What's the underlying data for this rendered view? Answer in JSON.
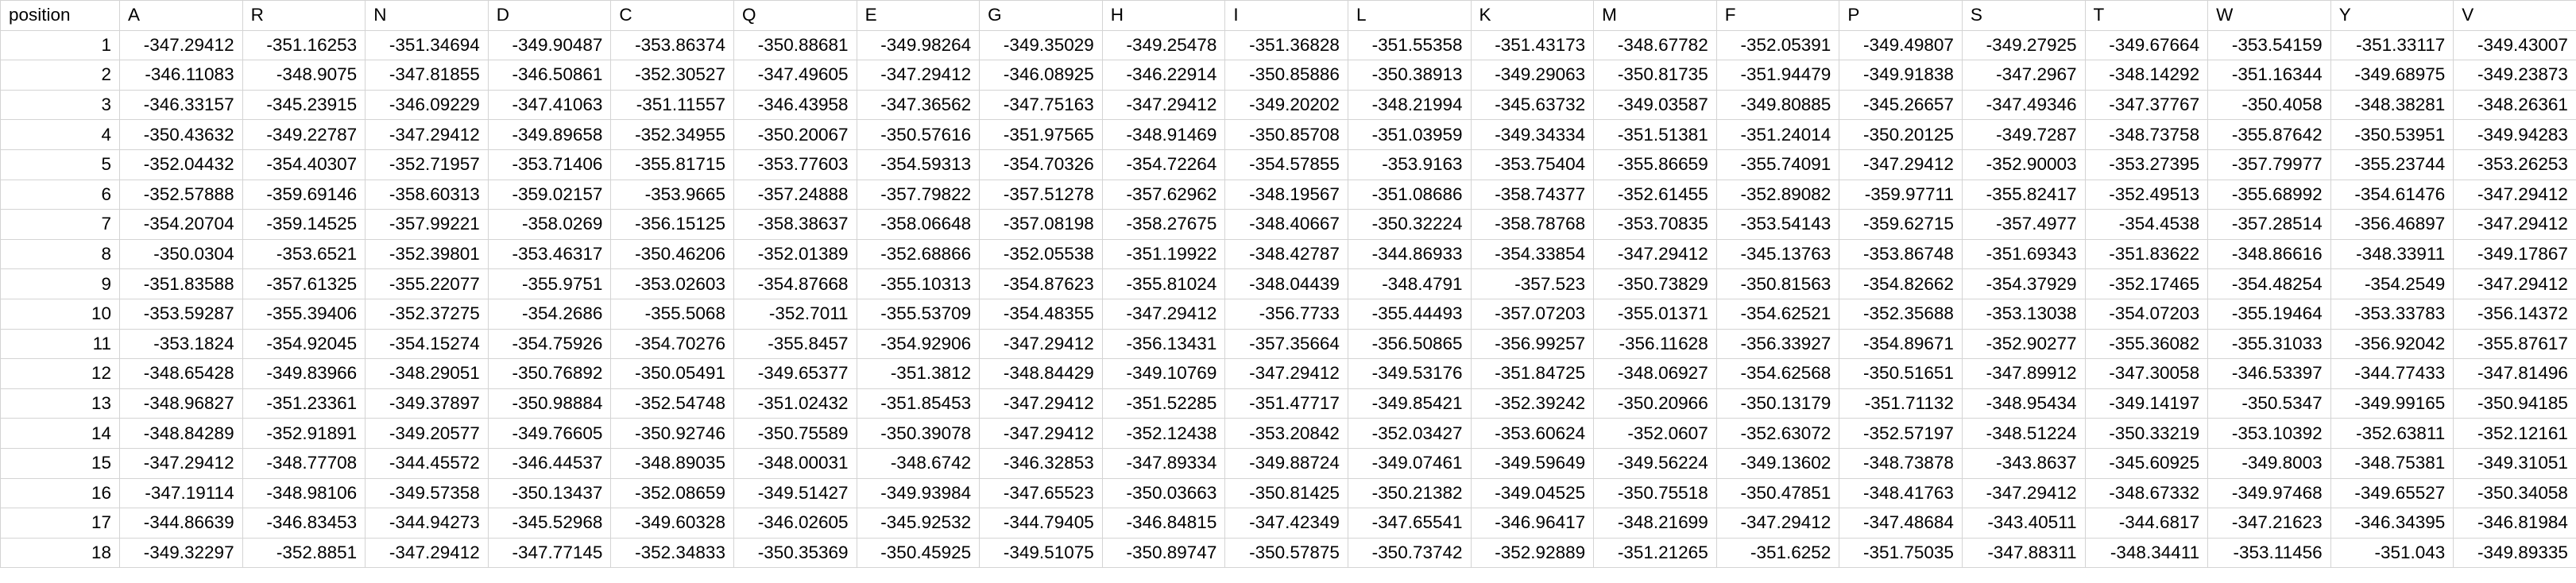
{
  "sheet": {
    "headers": [
      "position",
      "A",
      "R",
      "N",
      "D",
      "C",
      "Q",
      "E",
      "G",
      "H",
      "I",
      "L",
      "K",
      "M",
      "F",
      "P",
      "S",
      "T",
      "W",
      "Y",
      "V"
    ],
    "rows": [
      [
        "1",
        "-347.29412",
        "-351.16253",
        "-351.34694",
        "-349.90487",
        "-353.86374",
        "-350.88681",
        "-349.98264",
        "-349.35029",
        "-349.25478",
        "-351.36828",
        "-351.55358",
        "-351.43173",
        "-348.67782",
        "-352.05391",
        "-349.49807",
        "-349.27925",
        "-349.67664",
        "-353.54159",
        "-351.33117",
        "-349.43007"
      ],
      [
        "2",
        "-346.11083",
        "-348.9075",
        "-347.81855",
        "-346.50861",
        "-352.30527",
        "-347.49605",
        "-347.29412",
        "-346.08925",
        "-346.22914",
        "-350.85886",
        "-350.38913",
        "-349.29063",
        "-350.81735",
        "-351.94479",
        "-349.91838",
        "-347.2967",
        "-348.14292",
        "-351.16344",
        "-349.68975",
        "-349.23873"
      ],
      [
        "3",
        "-346.33157",
        "-345.23915",
        "-346.09229",
        "-347.41063",
        "-351.11557",
        "-346.43958",
        "-347.36562",
        "-347.75163",
        "-347.29412",
        "-349.20202",
        "-348.21994",
        "-345.63732",
        "-349.03587",
        "-349.80885",
        "-345.26657",
        "-347.49346",
        "-347.37767",
        "-350.4058",
        "-348.38281",
        "-348.26361"
      ],
      [
        "4",
        "-350.43632",
        "-349.22787",
        "-347.29412",
        "-349.89658",
        "-352.34955",
        "-350.20067",
        "-350.57616",
        "-351.97565",
        "-348.91469",
        "-350.85708",
        "-351.03959",
        "-349.34334",
        "-351.51381",
        "-351.24014",
        "-350.20125",
        "-349.7287",
        "-348.73758",
        "-355.87642",
        "-350.53951",
        "-349.94283"
      ],
      [
        "5",
        "-352.04432",
        "-354.40307",
        "-352.71957",
        "-353.71406",
        "-355.81715",
        "-353.77603",
        "-354.59313",
        "-354.70326",
        "-354.72264",
        "-354.57855",
        "-353.9163",
        "-353.75404",
        "-355.86659",
        "-355.74091",
        "-347.29412",
        "-352.90003",
        "-353.27395",
        "-357.79977",
        "-355.23744",
        "-353.26253"
      ],
      [
        "6",
        "-352.57888",
        "-359.69146",
        "-358.60313",
        "-359.02157",
        "-353.9665",
        "-357.24888",
        "-357.79822",
        "-357.51278",
        "-357.62962",
        "-348.19567",
        "-351.08686",
        "-358.74377",
        "-352.61455",
        "-352.89082",
        "-359.97711",
        "-355.82417",
        "-352.49513",
        "-355.68992",
        "-354.61476",
        "-347.29412"
      ],
      [
        "7",
        "-354.20704",
        "-359.14525",
        "-357.99221",
        "-358.0269",
        "-356.15125",
        "-358.38637",
        "-358.06648",
        "-357.08198",
        "-358.27675",
        "-348.40667",
        "-350.32224",
        "-358.78768",
        "-353.70835",
        "-353.54143",
        "-359.62715",
        "-357.4977",
        "-354.4538",
        "-357.28514",
        "-356.46897",
        "-347.29412"
      ],
      [
        "8",
        "-350.0304",
        "-353.6521",
        "-352.39801",
        "-353.46317",
        "-350.46206",
        "-352.01389",
        "-352.68866",
        "-352.05538",
        "-351.19922",
        "-348.42787",
        "-344.86933",
        "-354.33854",
        "-347.29412",
        "-345.13763",
        "-353.86748",
        "-351.69343",
        "-351.83622",
        "-348.86616",
        "-348.33911",
        "-349.17867"
      ],
      [
        "9",
        "-351.83588",
        "-357.61325",
        "-355.22077",
        "-355.9751",
        "-353.02603",
        "-354.87668",
        "-355.10313",
        "-354.87623",
        "-355.81024",
        "-348.04439",
        "-348.4791",
        "-357.523",
        "-350.73829",
        "-350.81563",
        "-354.82662",
        "-354.37929",
        "-352.17465",
        "-354.48254",
        "-354.2549",
        "-347.29412"
      ],
      [
        "10",
        "-353.59287",
        "-355.39406",
        "-352.37275",
        "-354.2686",
        "-355.5068",
        "-352.7011",
        "-355.53709",
        "-354.48355",
        "-347.29412",
        "-356.7733",
        "-355.44493",
        "-357.07203",
        "-355.01371",
        "-354.62521",
        "-352.35688",
        "-353.13038",
        "-354.07203",
        "-355.19464",
        "-353.33783",
        "-356.14372"
      ],
      [
        "11",
        "-353.1824",
        "-354.92045",
        "-354.15274",
        "-354.75926",
        "-354.70276",
        "-355.8457",
        "-354.92906",
        "-347.29412",
        "-356.13431",
        "-357.35664",
        "-356.50865",
        "-356.99257",
        "-356.11628",
        "-356.33927",
        "-354.89671",
        "-352.90277",
        "-355.36082",
        "-355.31033",
        "-356.92042",
        "-355.87617"
      ],
      [
        "12",
        "-348.65428",
        "-349.83966",
        "-348.29051",
        "-350.76892",
        "-350.05491",
        "-349.65377",
        "-351.3812",
        "-348.84429",
        "-349.10769",
        "-347.29412",
        "-349.53176",
        "-351.84725",
        "-348.06927",
        "-354.62568",
        "-350.51651",
        "-347.89912",
        "-347.30058",
        "-346.53397",
        "-344.77433",
        "-347.81496"
      ],
      [
        "13",
        "-348.96827",
        "-351.23361",
        "-349.37897",
        "-350.98884",
        "-352.54748",
        "-351.02432",
        "-351.85453",
        "-347.29412",
        "-351.52285",
        "-351.47717",
        "-349.85421",
        "-352.39242",
        "-350.20966",
        "-350.13179",
        "-351.71132",
        "-348.95434",
        "-349.14197",
        "-350.5347",
        "-349.99165",
        "-350.94185"
      ],
      [
        "14",
        "-348.84289",
        "-352.91891",
        "-349.20577",
        "-349.76605",
        "-350.92746",
        "-350.75589",
        "-350.39078",
        "-347.29412",
        "-352.12438",
        "-353.20842",
        "-352.03427",
        "-353.60624",
        "-352.0607",
        "-352.63072",
        "-352.57197",
        "-348.51224",
        "-350.33219",
        "-353.10392",
        "-352.63811",
        "-352.12161"
      ],
      [
        "15",
        "-347.29412",
        "-348.77708",
        "-344.45572",
        "-346.44537",
        "-348.89035",
        "-348.00031",
        "-348.6742",
        "-346.32853",
        "-347.89334",
        "-349.88724",
        "-349.07461",
        "-349.59649",
        "-349.56224",
        "-349.13602",
        "-348.73878",
        "-343.8637",
        "-345.60925",
        "-349.8003",
        "-348.75381",
        "-349.31051"
      ],
      [
        "16",
        "-347.19114",
        "-348.98106",
        "-349.57358",
        "-350.13437",
        "-352.08659",
        "-349.51427",
        "-349.93984",
        "-347.65523",
        "-350.03663",
        "-350.81425",
        "-350.21382",
        "-349.04525",
        "-350.75518",
        "-350.47851",
        "-348.41763",
        "-347.29412",
        "-348.67332",
        "-349.97468",
        "-349.65527",
        "-350.34058"
      ],
      [
        "17",
        "-344.86639",
        "-346.83453",
        "-344.94273",
        "-345.52968",
        "-349.60328",
        "-346.02605",
        "-345.92532",
        "-344.79405",
        "-346.84815",
        "-347.42349",
        "-347.65541",
        "-346.96417",
        "-348.21699",
        "-347.29412",
        "-347.48684",
        "-343.40511",
        "-344.6817",
        "-347.21623",
        "-346.34395",
        "-346.81984"
      ],
      [
        "18",
        "-349.32297",
        "-352.8851",
        "-347.29412",
        "-347.77145",
        "-352.34833",
        "-350.35369",
        "-350.45925",
        "-349.51075",
        "-350.89747",
        "-350.57875",
        "-350.73742",
        "-352.92889",
        "-351.21265",
        "-351.6252",
        "-351.75035",
        "-347.88311",
        "-348.34411",
        "-353.11456",
        "-351.043",
        "-349.89335"
      ]
    ]
  }
}
